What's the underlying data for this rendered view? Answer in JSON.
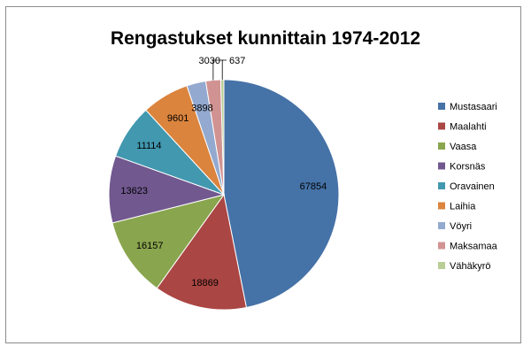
{
  "chart_data": {
    "type": "pie",
    "title": "Rengastukset kunnittain 1974-2012",
    "legend_position": "right",
    "categories": [
      "Mustasaari",
      "Maalahti",
      "Vaasa",
      "Korsnäs",
      "Oravainen",
      "Laihia",
      "Vöyri",
      "Maksamaa",
      "Vähäkyrö"
    ],
    "values": [
      67854,
      18869,
      16157,
      13623,
      11114,
      9601,
      3898,
      3030,
      637
    ],
    "colors": [
      "#4572a7",
      "#aa4643",
      "#89a54e",
      "#71588f",
      "#4198af",
      "#db843d",
      "#93a9cf",
      "#d19392",
      "#b9cd96"
    ]
  }
}
